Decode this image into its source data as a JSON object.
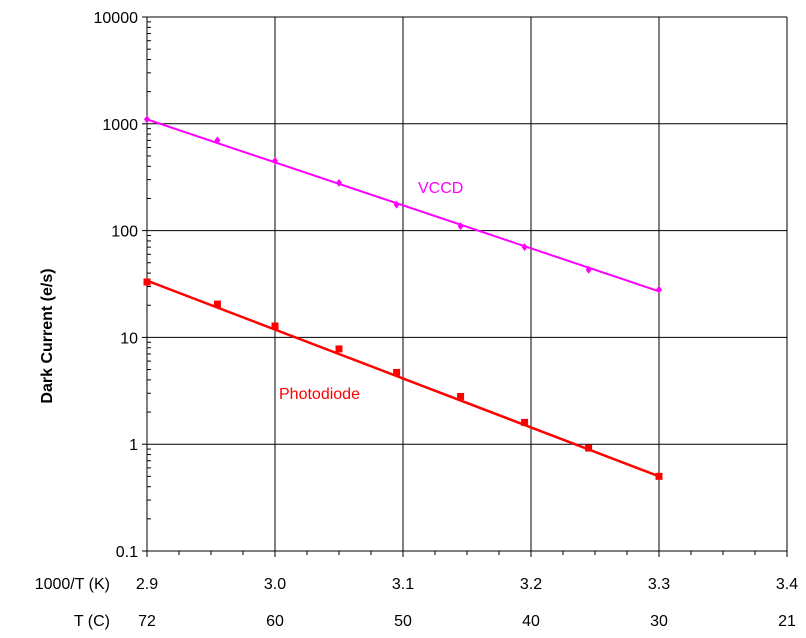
{
  "chart_data": {
    "type": "scatter",
    "ylabel": "Dark Current (e/s)",
    "yscale": "log",
    "ylim": [
      0.1,
      10000
    ],
    "y_ticks": [
      "0.1",
      "1",
      "10",
      "100",
      "1000",
      "10000"
    ],
    "xlim": [
      2.9,
      3.4
    ],
    "x_ticks": [
      "2.9",
      "3.0",
      "3.1",
      "3.2",
      "3.3",
      "3.4"
    ],
    "x_row_label": "1000/T (K)",
    "t_row_label": "T (C)",
    "t_ticks": [
      "72",
      "60",
      "50",
      "40",
      "30",
      "21"
    ],
    "grid": true,
    "series": [
      {
        "name": "VCCD",
        "color": "#ff00ff",
        "marker": "diamond",
        "x": [
          2.9,
          2.955,
          3.0,
          3.05,
          3.095,
          3.145,
          3.195,
          3.245,
          3.3
        ],
        "y": [
          1100,
          700,
          450,
          280,
          175,
          110,
          70,
          43,
          28
        ],
        "trendline": [
          [
            2.9,
            1100
          ],
          [
            3.3,
            27
          ]
        ]
      },
      {
        "name": "Photodiode",
        "color": "#ff0000",
        "marker": "square",
        "x": [
          2.9,
          2.955,
          3.0,
          3.05,
          3.095,
          3.145,
          3.195,
          3.245,
          3.3
        ],
        "y": [
          33,
          20.5,
          12.8,
          7.8,
          4.7,
          2.8,
          1.6,
          0.92,
          0.5
        ],
        "trendline": [
          [
            2.9,
            34
          ],
          [
            3.3,
            0.5
          ]
        ]
      }
    ]
  }
}
